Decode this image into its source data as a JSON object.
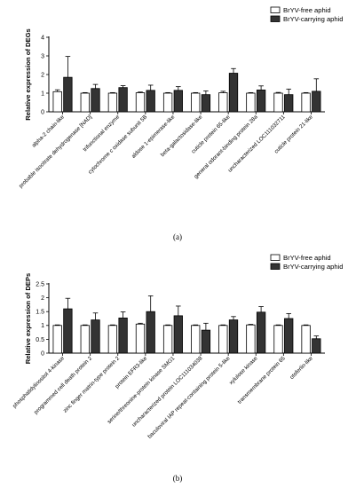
{
  "chart_data": [
    {
      "type": "bar",
      "panel_label": "(a)",
      "ylabel": "Relative expression of DEGs",
      "ylim": [
        0,
        4
      ],
      "yticks": [
        0,
        1,
        2,
        3,
        4
      ],
      "legend_position": "top-right",
      "categories": [
        "alpha-2 chain-like",
        "probable isocitrate dehydrogenase [NAD]",
        "trifunctional enzyme",
        "cytochrome c oxidase subunit 5B",
        "aldose 1-epimerase-like",
        "beta-galactosidase-like",
        "cuticle protein 65-like",
        "general odorant-binding protein 28a",
        "uncharacterized LOC111032711",
        "cuticle protein 21-like"
      ],
      "series": [
        {
          "name": "BrYV-free aphid",
          "fill": "#ffffff",
          "values": [
            1.08,
            1.0,
            1.0,
            1.02,
            1.0,
            1.0,
            1.02,
            1.0,
            1.0,
            1.0
          ],
          "errors": [
            0.1,
            0.03,
            0.03,
            0.04,
            0.03,
            0.03,
            0.08,
            0.03,
            0.04,
            0.03
          ]
        },
        {
          "name": "BrYV-carrying aphid",
          "fill": "#333333",
          "values": [
            1.85,
            1.25,
            1.3,
            1.15,
            1.15,
            0.92,
            2.07,
            1.17,
            0.92,
            1.1
          ],
          "errors": [
            1.12,
            0.22,
            0.1,
            0.28,
            0.2,
            0.2,
            0.25,
            0.22,
            0.3,
            0.67
          ]
        }
      ]
    },
    {
      "type": "bar",
      "panel_label": "(b)",
      "ylabel": "Relative expression of DEPs",
      "ylim": [
        0,
        2.5
      ],
      "yticks": [
        0,
        0.5,
        1,
        1.5,
        2,
        2.5
      ],
      "legend_position": "top-right",
      "categories": [
        "phosphatidylinositol 4-kinase",
        "programmed cell death protein 2",
        "zinc finger matrin-type protein 2",
        "protein EFR3-like",
        "serine/threonine-protein kinase SMG1",
        "uncharacterized protein LOC111034038",
        "baculoviral IAP repeat-containing protein 5-like",
        "xylulose kinase",
        "transmembrane protein 65",
        "otoferlin-like"
      ],
      "series": [
        {
          "name": "BrYV-free aphid",
          "fill": "#ffffff",
          "values": [
            1.0,
            1.0,
            1.0,
            1.05,
            1.0,
            1.0,
            1.0,
            1.02,
            1.0,
            1.0
          ],
          "errors": [
            0.02,
            0.02,
            0.02,
            0.03,
            0.02,
            0.02,
            0.02,
            0.02,
            0.02,
            0.02
          ]
        },
        {
          "name": "BrYV-carrying aphid",
          "fill": "#333333",
          "values": [
            1.6,
            1.2,
            1.27,
            1.5,
            1.35,
            0.83,
            1.2,
            1.48,
            1.25,
            0.52
          ],
          "errors": [
            0.38,
            0.25,
            0.22,
            0.57,
            0.35,
            0.25,
            0.12,
            0.2,
            0.18,
            0.1
          ]
        }
      ]
    }
  ]
}
